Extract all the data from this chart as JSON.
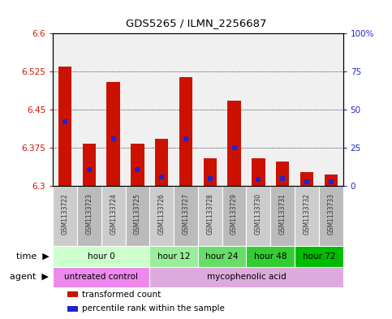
{
  "title": "GDS5265 / ILMN_2256687",
  "samples": [
    "GSM1133722",
    "GSM1133723",
    "GSM1133724",
    "GSM1133725",
    "GSM1133726",
    "GSM1133727",
    "GSM1133728",
    "GSM1133729",
    "GSM1133730",
    "GSM1133731",
    "GSM1133732",
    "GSM1133733"
  ],
  "bar_tops": [
    6.535,
    6.383,
    6.505,
    6.383,
    6.393,
    6.515,
    6.355,
    6.468,
    6.355,
    6.348,
    6.328,
    6.323
  ],
  "blue_positions": [
    6.427,
    6.333,
    6.393,
    6.333,
    6.318,
    6.393,
    6.315,
    6.375,
    6.313,
    6.315,
    6.308,
    6.308
  ],
  "bar_base": 6.3,
  "bar_color": "#cc1100",
  "blue_color": "#2222cc",
  "ylim_left": [
    6.3,
    6.6
  ],
  "ylim_right": [
    0,
    100
  ],
  "yticks_left": [
    6.3,
    6.375,
    6.45,
    6.525,
    6.6
  ],
  "yticks_right": [
    0,
    25,
    50,
    75,
    100
  ],
  "ytick_labels_left": [
    "6.3",
    "6.375",
    "6.45",
    "6.525",
    "6.6"
  ],
  "ytick_labels_right": [
    "0",
    "25",
    "50",
    "75",
    "100%"
  ],
  "left_tick_color": "#cc1100",
  "right_tick_color": "#2222cc",
  "grid_color": "#000000",
  "time_groups": [
    {
      "label": "hour 0",
      "start": 0,
      "end": 4,
      "color": "#ccffcc"
    },
    {
      "label": "hour 12",
      "start": 4,
      "end": 6,
      "color": "#99ee99"
    },
    {
      "label": "hour 24",
      "start": 6,
      "end": 8,
      "color": "#66dd66"
    },
    {
      "label": "hour 48",
      "start": 8,
      "end": 10,
      "color": "#33cc33"
    },
    {
      "label": "hour 72",
      "start": 10,
      "end": 12,
      "color": "#00bb00"
    }
  ],
  "agent_groups": [
    {
      "label": "untreated control",
      "start": 0,
      "end": 4,
      "color": "#ee88ee"
    },
    {
      "label": "mycophenolic acid",
      "start": 4,
      "end": 12,
      "color": "#ddaadd"
    }
  ],
  "row_label_time": "time",
  "row_label_agent": "agent",
  "legend_items": [
    {
      "color": "#cc1100",
      "label": "transformed count"
    },
    {
      "color": "#2222cc",
      "label": "percentile rank within the sample"
    }
  ],
  "bar_width": 0.55,
  "sample_box_color": "#cccccc",
  "sample_box_color_alt": "#bbbbbb",
  "bg_color": "#ffffff"
}
